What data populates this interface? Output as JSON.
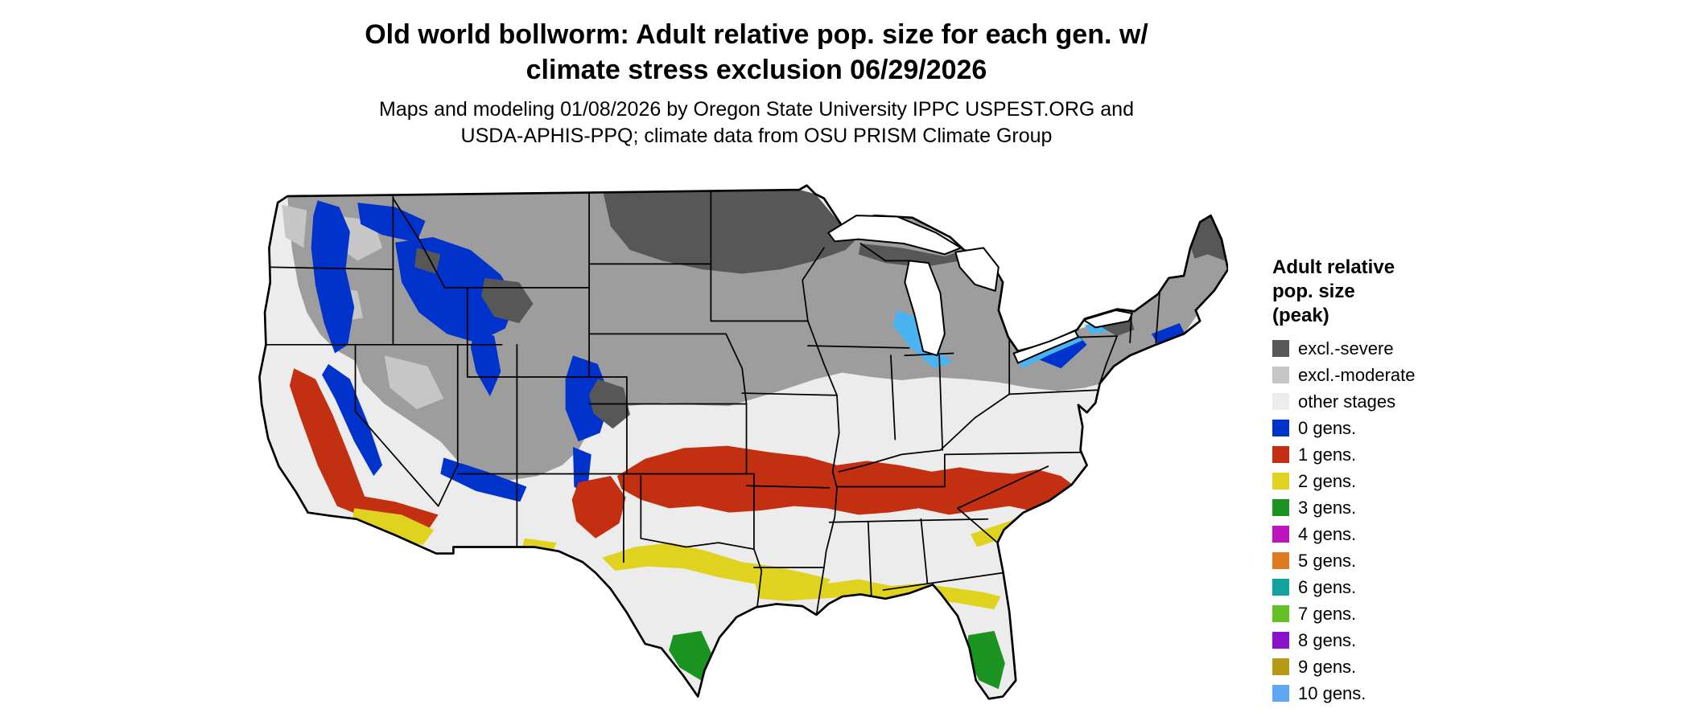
{
  "title": {
    "line1": "Old world bollworm: Adult relative pop. size for each gen. w/",
    "line2": "climate stress exclusion 06/29/2026"
  },
  "subtitle": {
    "line1": "Maps and modeling 01/08/2026 by Oregon State University IPPC USPEST.ORG and",
    "line2": "USDA-APHIS-PPQ; climate data from OSU PRISM Climate Group"
  },
  "legend": {
    "title_lines": [
      "Adult relative",
      "pop. size",
      "(peak)"
    ],
    "items": [
      {
        "label": "excl.-severe",
        "color": "#575757"
      },
      {
        "label": "excl.-moderate",
        "color": "#c6c6c6"
      },
      {
        "label": "other stages",
        "color": "#ececec"
      },
      {
        "label": "0 gens.",
        "color": "#0033cc"
      },
      {
        "label": "1 gens.",
        "color": "#c22f11"
      },
      {
        "label": "2 gens.",
        "color": "#e0d31f"
      },
      {
        "label": "3 gens.",
        "color": "#1b9320"
      },
      {
        "label": "4 gens.",
        "color": "#c013c0"
      },
      {
        "label": "5 gens.",
        "color": "#e0791f"
      },
      {
        "label": "6 gens.",
        "color": "#12a39c"
      },
      {
        "label": "7 gens.",
        "color": "#63c026"
      },
      {
        "label": "8 gens.",
        "color": "#8a12cc"
      },
      {
        "label": "9 gens.",
        "color": "#b79b16"
      },
      {
        "label": "10 gens.",
        "color": "#5fa8f5"
      }
    ]
  },
  "map": {
    "type": "choropleth",
    "extent": "Conterminous United States with black state boundaries; Great Lakes shown in white",
    "classes_visible": [
      {
        "class": "excl.-severe",
        "areas": "North Dakota and northern Minnesota band, upper Michigan, northern Maine, Yellowstone highlands, Colorado Rockies, Adirondacks"
      },
      {
        "class": "excl.-moderate",
        "areas": "northern tier: interior Northwest, Montana, northern plains, upper Midwest, Great Lakes states, Pennsylvania, New York, New England"
      },
      {
        "class": "other stages",
        "areas": "central band: coastal California, Kansas and Missouri through the Ohio Valley, Mid-Atlantic, interior Texas, Florida peninsula"
      },
      {
        "class": "0 gens.",
        "areas": "Cascades, Sierra Nevada, Idaho and northern Rockies, Wasatch, Colorado Rockies, Mogollon Rim, upstate New York, southern New England coast"
      },
      {
        "class": "1 gens.",
        "areas": "California Central Valley and southern California interior, southern Arizona, broad band from west Texas and Oklahoma across Arkansas and Tennessee to the Carolinas"
      },
      {
        "class": "2 gens.",
        "areas": "central Texas band, Gulf Coast from Louisiana to north Florida, coastal South Carolina and Georgia, southern Arizona lowlands"
      },
      {
        "class": "3 gens.",
        "areas": "southern tip of Texas, southern Florida"
      },
      {
        "class": "light blue (10 gens. color)",
        "areas": "small lake-moderated patches along Lakes Michigan, Erie and Ontario shorelines"
      }
    ]
  },
  "colors": {
    "background": "#ffffff",
    "text": "#000000",
    "map_border": "#000000",
    "water": "#ffffff",
    "other": "#ececec",
    "band_gray": "#9d9d9d",
    "moderate": "#c6c6c6",
    "severe": "#575757",
    "gens0": "#0033cc",
    "gens1": "#c22f11",
    "gens2": "#e0d31f",
    "gens3": "#1b9320",
    "lake_effect_blue": "#4ab3f2"
  }
}
